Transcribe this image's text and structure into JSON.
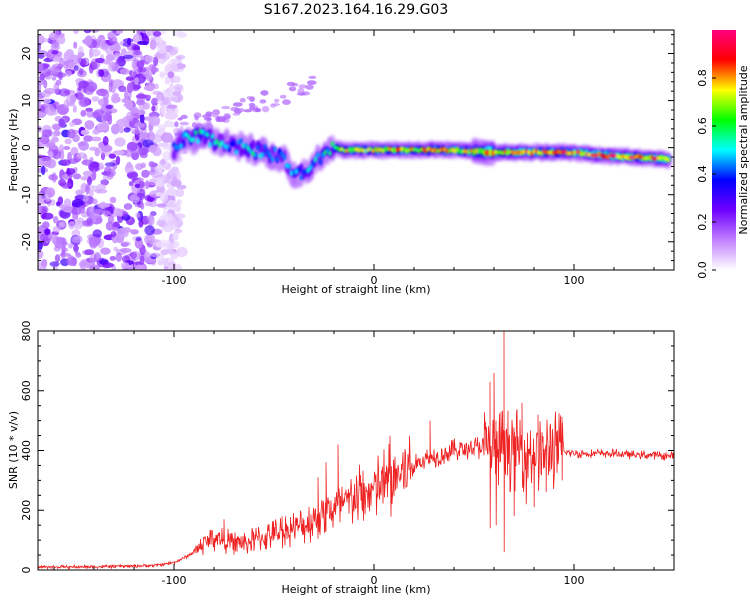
{
  "title": "S167.2023.164.16.29.G03",
  "chart_data": [
    {
      "type": "heatmap",
      "xlabel": "Height of straight line (km)",
      "ylabel": "Frequency (Hz)",
      "xlim": [
        -168,
        150
      ],
      "ylim": [
        -26,
        25
      ],
      "xticks": [
        -100,
        0,
        100
      ],
      "yticks": [
        -20,
        -10,
        0,
        10,
        20
      ],
      "colorbar": {
        "label": "Normalized spectral amplitude",
        "range": [
          0,
          1
        ],
        "ticks": [
          0.0,
          0.2,
          0.4,
          0.6,
          0.8
        ],
        "tick_labels": [
          "0.0",
          "0.2",
          "0.4",
          "0.6",
          "0.8"
        ],
        "colors": [
          "#ffffff",
          "#c080ff",
          "#7000ff",
          "#0000ff",
          "#00ffff",
          "#00ff00",
          "#ffff00",
          "#ff0000",
          "#ff0080"
        ]
      },
      "ridge": {
        "x": [
          -100,
          -95,
          -90,
          -85,
          -80,
          -75,
          -70,
          -65,
          -60,
          -55,
          -50,
          -45,
          -40,
          -35,
          -30,
          -25,
          -20,
          -15,
          -10,
          -5,
          0,
          10,
          20,
          30,
          40,
          50,
          60,
          70,
          80,
          90,
          100,
          110,
          120,
          130,
          140,
          148
        ],
        "y": [
          -0.5,
          1.5,
          2.0,
          2.5,
          1.5,
          1.0,
          0.5,
          0.0,
          -0.5,
          -1.0,
          -1.5,
          -2.0,
          -6.0,
          -5.0,
          -4.0,
          -1.0,
          0.0,
          -0.5,
          -0.5,
          -0.5,
          -0.5,
          -0.5,
          -0.5,
          -0.5,
          -0.5,
          -0.8,
          -1.0,
          -1.0,
          -1.0,
          -1.0,
          -1.0,
          -1.5,
          -1.8,
          -2.0,
          -2.3,
          -2.5
        ],
        "amplitude": [
          0.45,
          0.6,
          0.55,
          0.6,
          0.55,
          0.5,
          0.45,
          0.5,
          0.55,
          0.5,
          0.45,
          0.45,
          0.5,
          0.45,
          0.5,
          0.55,
          0.6,
          0.75,
          0.8,
          0.7,
          0.75,
          0.8,
          0.75,
          0.8,
          0.8,
          0.75,
          0.85,
          0.9,
          0.9,
          0.85,
          0.9,
          0.95,
          0.95,
          0.9,
          0.95,
          0.9
        ]
      },
      "noise_region": [
        -168,
        -102
      ]
    },
    {
      "type": "line",
      "xlabel": "Height of straight line (km)",
      "ylabel": "SNR (10 * v/v)",
      "xlim": [
        -168,
        150
      ],
      "ylim": [
        0,
        800
      ],
      "xticks": [
        -100,
        0,
        100
      ],
      "yticks": [
        0,
        200,
        400,
        600,
        800
      ],
      "color": "#ee2222",
      "x": [
        -168,
        -150,
        -130,
        -110,
        -100,
        -95,
        -90,
        -85,
        -80,
        -75,
        -70,
        -65,
        -60,
        -55,
        -50,
        -45,
        -40,
        -35,
        -30,
        -25,
        -20,
        -15,
        -10,
        -5,
        0,
        5,
        10,
        15,
        20,
        25,
        30,
        35,
        40,
        45,
        50,
        55,
        60,
        65,
        70,
        75,
        80,
        85,
        90,
        95,
        100,
        110,
        120,
        130,
        140,
        150
      ],
      "y": [
        10,
        10,
        12,
        15,
        25,
        40,
        60,
        90,
        110,
        100,
        90,
        90,
        100,
        110,
        120,
        130,
        140,
        150,
        170,
        200,
        200,
        220,
        240,
        250,
        270,
        290,
        310,
        330,
        350,
        370,
        380,
        390,
        400,
        405,
        410,
        410,
        400,
        410,
        400,
        400,
        395,
        395,
        400,
        395,
        390,
        390,
        390,
        385,
        385,
        380
      ],
      "spikes": [
        {
          "x": -75,
          "y": 170
        },
        {
          "x": -46,
          "y": 180
        },
        {
          "x": -28,
          "y": 310
        },
        {
          "x": -24,
          "y": 360
        },
        {
          "x": -18,
          "y": 420
        },
        {
          "x": 8,
          "y": 450
        },
        {
          "x": 28,
          "y": 500
        },
        {
          "x": 58,
          "y": 630
        },
        {
          "x": 60,
          "y": 660
        },
        {
          "x": 65,
          "y": 800
        },
        {
          "x": 67,
          "y": 460
        },
        {
          "x": 74,
          "y": 560
        },
        {
          "x": 82,
          "y": 520
        },
        {
          "x": 88,
          "y": 480
        }
      ],
      "dips": [
        {
          "x": 58,
          "y": 140
        },
        {
          "x": 61,
          "y": 150
        },
        {
          "x": 65,
          "y": 60
        },
        {
          "x": 70,
          "y": 180
        },
        {
          "x": 76,
          "y": 220
        },
        {
          "x": 80,
          "y": 210
        },
        {
          "x": 86,
          "y": 260
        },
        {
          "x": 94,
          "y": 300
        }
      ]
    }
  ]
}
